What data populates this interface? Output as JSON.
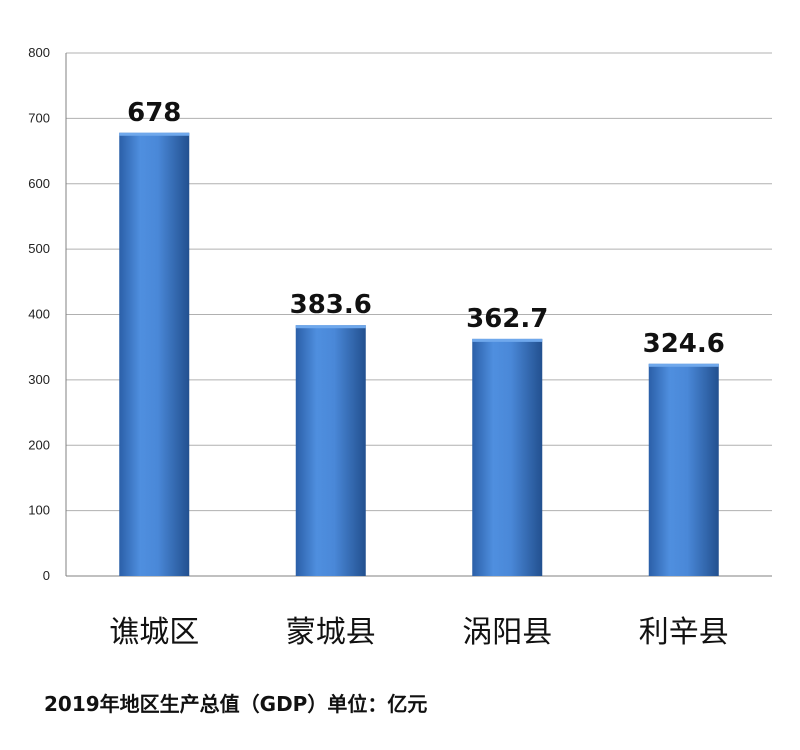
{
  "chart_data": {
    "type": "bar",
    "title": "2019年地区生产总值（GDP）单位：亿元",
    "categories": [
      "谯城区",
      "蒙城县",
      "涡阳县",
      "利辛县"
    ],
    "values": [
      678,
      383.6,
      362.7,
      324.6
    ],
    "value_labels": [
      "678",
      "383.6",
      "362.7",
      "324.6"
    ],
    "ylim": [
      0,
      800
    ],
    "yticks": [
      0,
      100,
      200,
      300,
      400,
      500,
      600,
      700,
      800
    ],
    "xlabel": "",
    "ylabel": "",
    "grid": true,
    "legend": "none",
    "colors": {
      "bar_light": "#5b9be6",
      "bar_mid": "#3a78cf",
      "bar_dark": "#1f4f94",
      "grid": "#b0b0b0",
      "axis": "#808080"
    }
  }
}
